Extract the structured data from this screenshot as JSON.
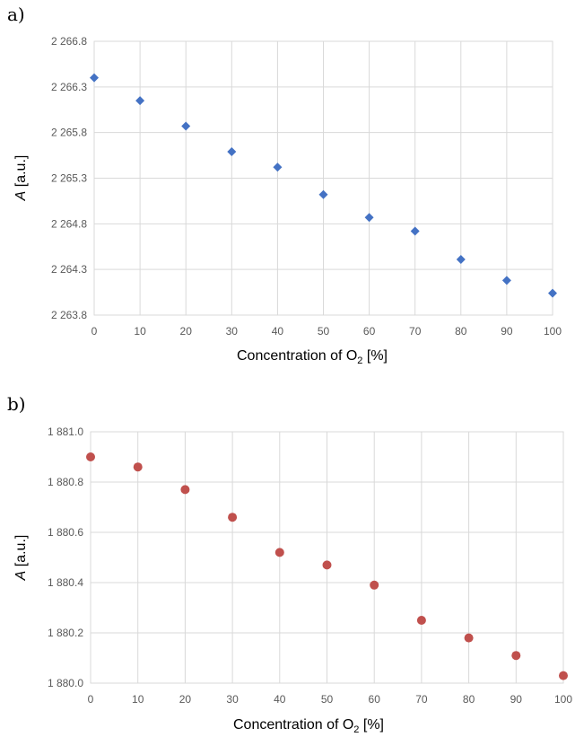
{
  "panels": {
    "a": {
      "label": "a)"
    },
    "b": {
      "label": "b)"
    }
  },
  "chart_data": [
    {
      "type": "scatter",
      "panel": "a",
      "title": "",
      "xlabel": "Concentration of O₂ [%]",
      "ylabel": "A [a.u.]",
      "xlim": [
        0,
        100
      ],
      "ylim": [
        2263.8,
        2266.8
      ],
      "x_ticks": [
        0,
        10,
        20,
        30,
        40,
        50,
        60,
        70,
        80,
        90,
        100
      ],
      "x_tick_labels": [
        "0",
        "10",
        "20",
        "30",
        "40",
        "50",
        "60",
        "70",
        "80",
        "90",
        "100"
      ],
      "y_ticks": [
        2263.8,
        2264.3,
        2264.8,
        2265.3,
        2265.8,
        2266.3,
        2266.8
      ],
      "y_tick_labels": [
        "2 263.8",
        "2 264.3",
        "2 264.8",
        "2 265.3",
        "2 265.8",
        "2 266.3",
        "2 266.8"
      ],
      "grid": true,
      "marker": "diamond",
      "color": "#4472c4",
      "x": [
        0,
        10,
        20,
        30,
        40,
        50,
        60,
        70,
        80,
        90,
        100
      ],
      "y": [
        2266.4,
        2266.15,
        2265.87,
        2265.59,
        2265.42,
        2265.12,
        2264.87,
        2264.72,
        2264.41,
        2264.18,
        2264.04
      ]
    },
    {
      "type": "scatter",
      "panel": "b",
      "title": "",
      "xlabel": "Concentration of O₂ [%]",
      "ylabel": "A [a.u.]",
      "xlim": [
        0,
        100
      ],
      "ylim": [
        1880.0,
        1881.0
      ],
      "x_ticks": [
        0,
        10,
        20,
        30,
        40,
        50,
        60,
        70,
        80,
        90,
        100
      ],
      "x_tick_labels": [
        "0",
        "10",
        "20",
        "30",
        "40",
        "50",
        "60",
        "70",
        "80",
        "90",
        "100"
      ],
      "y_ticks": [
        1880.0,
        1880.2,
        1880.4,
        1880.6,
        1880.8,
        1881.0
      ],
      "y_tick_labels": [
        "1 880.0",
        "1 880.2",
        "1 880.4",
        "1 880.6",
        "1 880.8",
        "1 881.0"
      ],
      "grid": true,
      "marker": "circle",
      "color": "#c0504d",
      "x": [
        0,
        10,
        20,
        30,
        40,
        50,
        60,
        70,
        80,
        90,
        100
      ],
      "y": [
        1880.9,
        1880.86,
        1880.77,
        1880.66,
        1880.52,
        1880.47,
        1880.39,
        1880.25,
        1880.18,
        1880.11,
        1880.03
      ]
    }
  ]
}
